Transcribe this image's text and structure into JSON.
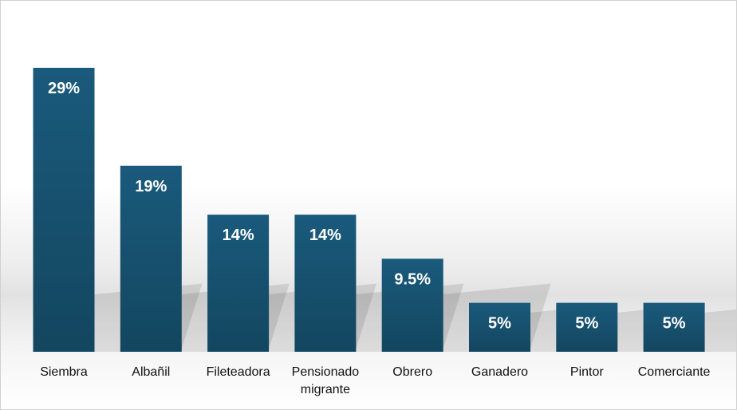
{
  "chart_data": {
    "type": "bar",
    "title": "",
    "xlabel": "",
    "ylabel": "",
    "categories": [
      "Siembra",
      "Albañil",
      "Fileteadora",
      "Pensionado migrante",
      "Obrero",
      "Ganadero",
      "Pintor",
      "Comerciante"
    ],
    "category_lines": [
      [
        "Siembra"
      ],
      [
        "Albañil"
      ],
      [
        "Fileteadora"
      ],
      [
        "Pensionado",
        "migrante"
      ],
      [
        "Obrero"
      ],
      [
        "Ganadero"
      ],
      [
        "Pintor"
      ],
      [
        "Comerciante"
      ]
    ],
    "values": [
      29,
      19,
      14,
      14,
      9.5,
      5,
      5,
      5
    ],
    "value_labels": [
      "29%",
      "19%",
      "14%",
      "14%",
      "9.5%",
      "5%",
      "5%",
      "5%"
    ],
    "ylim": [
      0,
      30
    ],
    "grid": false,
    "legend": "none",
    "bar_color": "#1a5a7c",
    "bar_color_dark": "#13465f",
    "label_color": "#ffffff"
  }
}
